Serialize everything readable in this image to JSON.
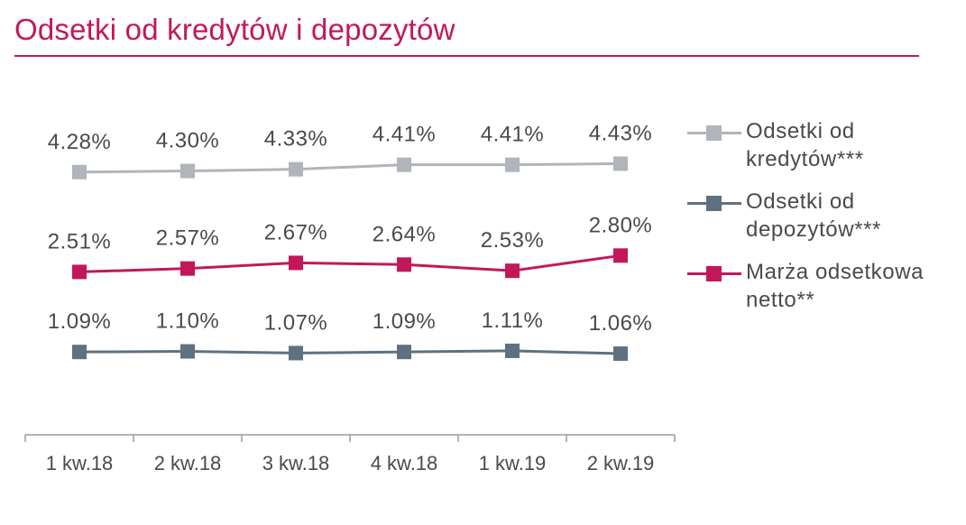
{
  "header": {
    "title": "Odsetki od kredytów i depozytów"
  },
  "colors": {
    "accent": "#c2185b",
    "series_loans": "#b0b5bb",
    "series_deposits": "#5f7180",
    "series_margin": "#c2185b",
    "axis": "#9a9a9a",
    "text": "#4a4a4a"
  },
  "chart_data": {
    "type": "line",
    "title": "Odsetki od kredytów i depozytów",
    "xlabel": "",
    "ylabel": "",
    "categories": [
      "1 kw.18",
      "2 kw.18",
      "3 kw.18",
      "4 kw.18",
      "1 kw.19",
      "2 kw.19"
    ],
    "ylim": [
      0.8,
      4.8
    ],
    "grid": false,
    "legend_position": "right",
    "series": [
      {
        "name": "Odsetki od kredytów***",
        "key": "loans",
        "values": [
          4.28,
          4.3,
          4.33,
          4.41,
          4.41,
          4.43
        ],
        "labels": [
          "4.28%",
          "4.30%",
          "4.33%",
          "4.41%",
          "4.41%",
          "4.43%"
        ]
      },
      {
        "name": "Odsetki od depozytów***",
        "key": "deposits",
        "values": [
          1.09,
          1.1,
          1.07,
          1.09,
          1.11,
          1.06
        ],
        "labels": [
          "1.09%",
          "1.10%",
          "1.07%",
          "1.09%",
          "1.11%",
          "1.06%"
        ]
      },
      {
        "name": "Marża odsetkowa netto**",
        "key": "margin",
        "values": [
          2.51,
          2.57,
          2.67,
          2.64,
          2.53,
          2.8
        ],
        "labels": [
          "2.51%",
          "2.57%",
          "2.67%",
          "2.64%",
          "2.53%",
          "2.80%"
        ]
      }
    ]
  },
  "legend": {
    "items": [
      {
        "label": "Odsetki od kredytów***",
        "color": "#b0b5bb"
      },
      {
        "label": "Odsetki od depozytów***",
        "color": "#5f7180"
      },
      {
        "label": "Marża odsetkowa netto**",
        "color": "#c2185b"
      }
    ]
  }
}
